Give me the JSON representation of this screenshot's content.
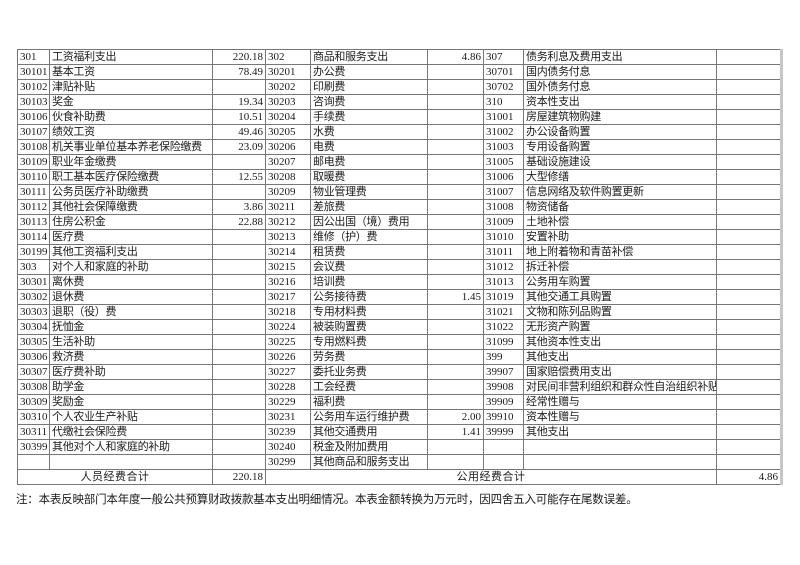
{
  "meta": {
    "background": "#ffffff",
    "border_color": "#777777",
    "text_color": "#1b1b1b",
    "right_edge_color": "#c6c6c6"
  },
  "table": {
    "rows": [
      [
        "301",
        "工资福利支出",
        "220.18",
        "302",
        "商品和服务支出",
        "4.86",
        "307",
        "债务利息及费用支出",
        ""
      ],
      [
        "30101",
        "基本工资",
        "78.49",
        "30201",
        "办公费",
        "",
        "30701",
        "国内债务付息",
        ""
      ],
      [
        "30102",
        "津贴补贴",
        "",
        "30202",
        "印刷费",
        "",
        "30702",
        "国外债务付息",
        ""
      ],
      [
        "30103",
        "奖金",
        "19.34",
        "30203",
        "咨询费",
        "",
        "310",
        "资本性支出",
        ""
      ],
      [
        "30106",
        "伙食补助费",
        "10.51",
        "30204",
        "手续费",
        "",
        "31001",
        "房屋建筑物购建",
        ""
      ],
      [
        "30107",
        "绩效工资",
        "49.46",
        "30205",
        "水费",
        "",
        "31002",
        "办公设备购置",
        ""
      ],
      [
        "30108",
        "机关事业单位基本养老保险缴费",
        "23.09",
        "30206",
        "电费",
        "",
        "31003",
        "专用设备购置",
        ""
      ],
      [
        "30109",
        "职业年金缴费",
        "",
        "30207",
        "邮电费",
        "",
        "31005",
        "基础设施建设",
        ""
      ],
      [
        "30110",
        "职工基本医疗保险缴费",
        "12.55",
        "30208",
        "取暖费",
        "",
        "31006",
        "大型修缮",
        ""
      ],
      [
        "30111",
        "公务员医疗补助缴费",
        "",
        "30209",
        "物业管理费",
        "",
        "31007",
        "信息网络及软件购置更新",
        ""
      ],
      [
        "30112",
        "其他社会保障缴费",
        "3.86",
        "30211",
        "差旅费",
        "",
        "31008",
        "物资储备",
        ""
      ],
      [
        "30113",
        "住房公积金",
        "22.88",
        "30212",
        "因公出国（境）费用",
        "",
        "31009",
        "土地补偿",
        ""
      ],
      [
        "30114",
        "医疗费",
        "",
        "30213",
        "维修（护）费",
        "",
        "31010",
        "安置补助",
        ""
      ],
      [
        "30199",
        "其他工资福利支出",
        "",
        "30214",
        "租赁费",
        "",
        "31011",
        "地上附着物和青苗补偿",
        ""
      ],
      [
        "303",
        "对个人和家庭的补助",
        "",
        "30215",
        "会议费",
        "",
        "31012",
        "拆迁补偿",
        ""
      ],
      [
        "30301",
        "离休费",
        "",
        "30216",
        "培训费",
        "",
        "31013",
        "公务用车购置",
        ""
      ],
      [
        "30302",
        "退休费",
        "",
        "30217",
        "公务接待费",
        "1.45",
        "31019",
        "其他交通工具购置",
        ""
      ],
      [
        "30303",
        "退职（役）费",
        "",
        "30218",
        "专用材料费",
        "",
        "31021",
        "文物和陈列品购置",
        ""
      ],
      [
        "30304",
        "抚恤金",
        "",
        "30224",
        "被装购置费",
        "",
        "31022",
        "无形资产购置",
        ""
      ],
      [
        "30305",
        "生活补助",
        "",
        "30225",
        "专用燃料费",
        "",
        "31099",
        "其他资本性支出",
        ""
      ],
      [
        "30306",
        "救济费",
        "",
        "30226",
        "劳务费",
        "",
        "399",
        "其他支出",
        ""
      ],
      [
        "30307",
        "医疗费补助",
        "",
        "30227",
        "委托业务费",
        "",
        "39907",
        "国家赔偿费用支出",
        ""
      ],
      [
        "30308",
        "助学金",
        "",
        "30228",
        "工会经费",
        "",
        "39908",
        "对民间非营利组织和群众性自治组织补贴",
        ""
      ],
      [
        "30309",
        "奖励金",
        "",
        "30229",
        "福利费",
        "",
        "39909",
        "经常性赠与",
        ""
      ],
      [
        "30310",
        "个人农业生产补贴",
        "",
        "30231",
        "公务用车运行维护费",
        "2.00",
        "39910",
        "资本性赠与",
        ""
      ],
      [
        "30311",
        "代缴社会保险费",
        "",
        "30239",
        "其他交通费用",
        "1.41",
        "39999",
        "其他支出",
        ""
      ],
      [
        "30399",
        "其他对个人和家庭的补助",
        "",
        "30240",
        "税金及附加费用",
        "",
        "",
        "",
        ""
      ],
      [
        "",
        "",
        "",
        "30299",
        "其他商品和服务支出",
        "",
        "",
        "",
        ""
      ]
    ],
    "total_row": {
      "personnel_label": "人员经费合计",
      "personnel_total": "220.18",
      "public_label": "公用经费合计",
      "public_total": "4.86"
    }
  },
  "note": "注：本表反映部门本年度一般公共预算财政拨款基本支出明细情况。本表金额转换为万元时，因四舍五入可能存在尾数误差。"
}
